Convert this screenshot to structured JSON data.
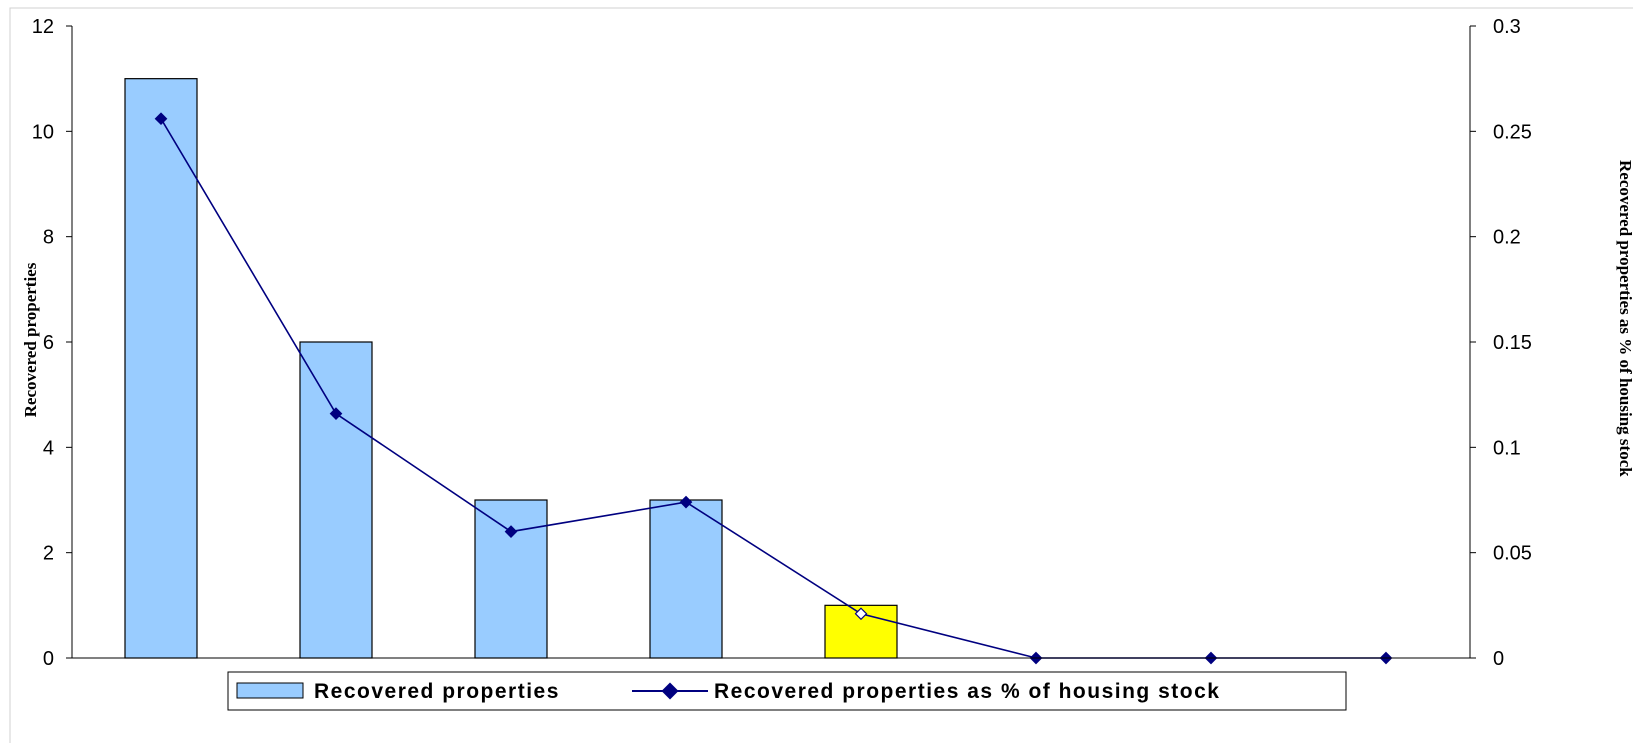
{
  "chart_data": {
    "type": "bar",
    "categories": [
      "",
      "",
      "",
      "",
      "",
      "",
      "",
      ""
    ],
    "series": [
      {
        "name": "Recovered properties",
        "kind": "bar",
        "axis": "left",
        "values": [
          11,
          6,
          3,
          3,
          1,
          0,
          0,
          0
        ],
        "color": "#99ccff",
        "highlight_index": 4,
        "highlight_color": "#ffff00"
      },
      {
        "name": "Recovered properties as % of housing stock",
        "kind": "line",
        "axis": "right",
        "values": [
          0.256,
          0.116,
          0.06,
          0.074,
          0.021,
          0,
          0,
          0
        ],
        "color": "#000080",
        "hollow_marker_index": 4
      }
    ],
    "ylabel": "Recovered properties",
    "y2label": "Recovered properties as % of housing stock",
    "ylim": [
      0,
      12
    ],
    "y2lim": [
      0,
      0.3
    ],
    "yticks": [
      "0",
      "2",
      "4",
      "6",
      "8",
      "10",
      "12"
    ],
    "y2ticks": [
      "0",
      "0.05",
      "0.1",
      "0.15",
      "0.2",
      "0.25",
      "0.3"
    ],
    "grid": false,
    "legend_position": "bottom"
  }
}
